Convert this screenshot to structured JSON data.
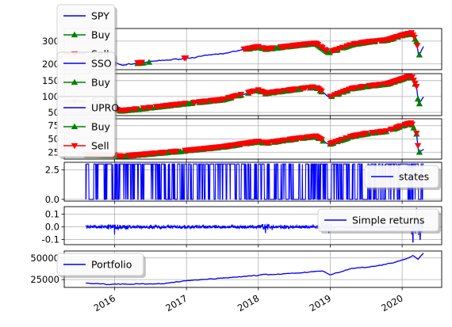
{
  "chart_data": [
    {
      "type": "line",
      "id": "spy",
      "ylim": [
        175,
        355
      ],
      "yticks": [
        200,
        300
      ],
      "grid": true,
      "legend": {
        "placement": "top-left",
        "entries": [
          {
            "label": "SPY",
            "style": "line",
            "color": "#0000ff"
          },
          {
            "label": "Buy",
            "style": "triangle-up",
            "color": "#008000",
            "marker_color": "#008000"
          },
          {
            "label": "Sell",
            "style": "triangle-down",
            "color": "#ff0000",
            "marker_color": "#ff0000"
          }
        ]
      },
      "series": [
        {
          "name": "SPY",
          "x": [
            2015.6,
            2016.0,
            2016.1,
            2016.5,
            2017.0,
            2017.5,
            2018.0,
            2018.1,
            2018.5,
            2018.8,
            2018.98,
            2019.3,
            2019.5,
            2019.8,
            2020.0,
            2020.13,
            2020.2,
            2020.23,
            2020.3
          ],
          "y": [
            210,
            205,
            195,
            210,
            225,
            245,
            275,
            265,
            280,
            290,
            250,
            285,
            295,
            305,
            325,
            335,
            300,
            235,
            280
          ]
        }
      ],
      "buy_x_ranges": [
        [
          2015.6,
          2016.0
        ],
        [
          2016.3,
          2016.5
        ],
        [
          2017.8,
          2018.2
        ],
        [
          2018.25,
          2019.0
        ],
        [
          2019.0,
          2020.25
        ]
      ],
      "sell_x_ranges": [
        [
          2015.6,
          2015.85
        ],
        [
          2016.3,
          2016.45
        ],
        [
          2016.95,
          2017.0
        ],
        [
          2017.8,
          2018.2
        ],
        [
          2018.25,
          2020.22
        ]
      ]
    },
    {
      "type": "line",
      "id": "sso",
      "ylim": [
        40,
        172
      ],
      "yticks": [
        50,
        100,
        150
      ],
      "grid": true,
      "legend": {
        "placement": "top-left",
        "entries": [
          {
            "label": "SSO",
            "style": "line",
            "color": "#0000ff"
          },
          {
            "label": "Buy",
            "style": "triangle-up",
            "color": "#008000",
            "marker_color": "#008000"
          },
          {
            "label": "Sell",
            "style": "triangle-down",
            "color": "#ff0000",
            "marker_color": "#ff0000"
          }
        ]
      },
      "series": [
        {
          "name": "SSO",
          "x": [
            2015.6,
            2016.0,
            2016.1,
            2016.5,
            2017.0,
            2017.5,
            2018.0,
            2018.1,
            2018.5,
            2018.8,
            2018.98,
            2019.3,
            2019.5,
            2019.8,
            2020.0,
            2020.13,
            2020.2,
            2020.23,
            2020.3
          ],
          "y": [
            58,
            60,
            55,
            65,
            78,
            90,
            120,
            110,
            122,
            130,
            98,
            125,
            132,
            140,
            155,
            165,
            130,
            75,
            100
          ]
        }
      ],
      "buy_x_ranges": [
        [
          2015.6,
          2016.4
        ],
        [
          2016.4,
          2018.9
        ],
        [
          2019.0,
          2020.25
        ]
      ],
      "sell_x_ranges": [
        [
          2015.6,
          2018.9
        ],
        [
          2019.0,
          2020.22
        ]
      ]
    },
    {
      "type": "line",
      "id": "upro",
      "ylim": [
        12,
        88
      ],
      "yticks": [
        25,
        50,
        75
      ],
      "grid": true,
      "legend": {
        "placement": "top-left",
        "entries": [
          {
            "label": "UPRO",
            "style": "line",
            "color": "#0000ff"
          },
          {
            "label": "Buy",
            "style": "triangle-up",
            "color": "#008000",
            "marker_color": "#008000"
          },
          {
            "label": "Sell",
            "style": "triangle-down",
            "color": "#ff0000",
            "marker_color": "#ff0000"
          }
        ]
      },
      "series": [
        {
          "name": "UPRO",
          "x": [
            2015.6,
            2016.0,
            2016.1,
            2016.5,
            2017.0,
            2017.5,
            2018.0,
            2018.1,
            2018.5,
            2018.8,
            2018.98,
            2019.3,
            2019.5,
            2019.8,
            2020.0,
            2020.13,
            2020.2,
            2020.23,
            2020.3
          ],
          "y": [
            20,
            19,
            17,
            22,
            28,
            35,
            45,
            42,
            50,
            55,
            40,
            55,
            60,
            65,
            75,
            80,
            60,
            25,
            30
          ]
        }
      ],
      "buy_x_ranges": [
        [
          2015.6,
          2018.9
        ],
        [
          2019.0,
          2020.25
        ]
      ],
      "sell_x_ranges": [
        [
          2015.6,
          2018.9
        ],
        [
          2019.0,
          2020.22
        ]
      ]
    },
    {
      "type": "line",
      "id": "states",
      "ylim": [
        -0.15,
        3.15
      ],
      "yticks": [
        0.0,
        2.5
      ],
      "grid": true,
      "legend": {
        "placement": "lower-right",
        "entries": [
          {
            "label": "states",
            "style": "line",
            "color": "#0000ff"
          }
        ]
      },
      "series": [
        {
          "name": "states",
          "x": [
            2015.6,
            2020.3
          ],
          "levels": [
            0,
            3
          ],
          "color": "#0000ff"
        }
      ]
    },
    {
      "type": "line",
      "id": "returns",
      "ylim": [
        -0.14,
        0.16
      ],
      "yticks": [
        -0.1,
        0.0,
        0.1
      ],
      "grid": true,
      "legend": {
        "placement": "right",
        "entries": [
          {
            "label": "Simple returns",
            "style": "line",
            "color": "#0000ff"
          }
        ]
      },
      "series": [
        {
          "name": "Simple returns",
          "x": [
            2015.6,
            2020.3
          ],
          "spike_x": [
            2016.0,
            2018.1,
            2018.98,
            2020.15,
            2020.2,
            2020.25
          ],
          "spike_y": [
            -0.06,
            -0.05,
            -0.05,
            -0.12,
            0.15,
            -0.1
          ]
        }
      ]
    },
    {
      "type": "line",
      "id": "portfolio",
      "ylim": [
        16000,
        58000
      ],
      "yticks": [
        25000,
        50000
      ],
      "grid": true,
      "legend": {
        "placement": "top-left",
        "entries": [
          {
            "label": "Portfolio",
            "style": "line",
            "color": "#0000ff"
          }
        ]
      },
      "series": [
        {
          "name": "Portfolio",
          "x": [
            2015.6,
            2015.9,
            2016.3,
            2016.7,
            2017.0,
            2017.3,
            2017.6,
            2018.0,
            2018.3,
            2018.6,
            2018.9,
            2019.0,
            2019.3,
            2019.6,
            2019.9,
            2020.1,
            2020.15,
            2020.22,
            2020.3
          ],
          "y": [
            21000,
            19500,
            20000,
            20500,
            24000,
            25500,
            27500,
            30000,
            31500,
            33000,
            35000,
            30500,
            38000,
            40000,
            45000,
            50000,
            53000,
            48000,
            56000
          ]
        }
      ]
    }
  ],
  "x_axis": {
    "ticks": [
      "2016",
      "2017",
      "2018",
      "2019",
      "2020"
    ],
    "tick_values": [
      2016.0,
      2017.0,
      2018.0,
      2019.0,
      2020.0
    ],
    "xlim": [
      2015.3,
      2020.55
    ]
  }
}
